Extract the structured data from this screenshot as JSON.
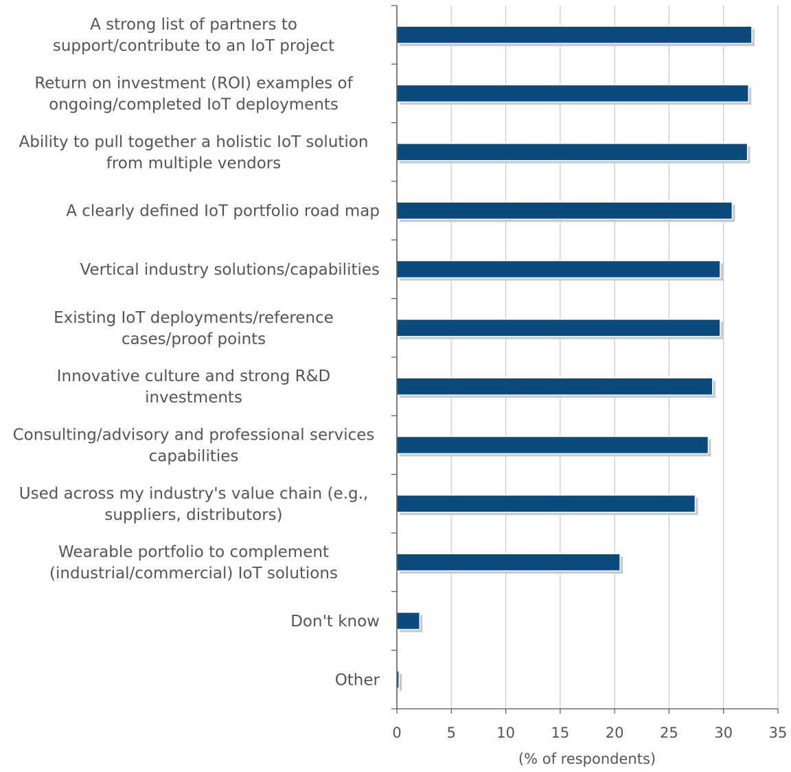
{
  "chart_data": {
    "type": "bar",
    "orientation": "horizontal",
    "categories": [
      [
        "A strong list of partners to",
        "support/contribute to an IoT project"
      ],
      [
        "Return on investment (ROI) examples of",
        "ongoing/completed IoT deployments"
      ],
      [
        "Ability to pull together a holistic IoT solution",
        "from multiple vendors"
      ],
      [
        "A clearly defined IoT portfolio road map"
      ],
      [
        "Vertical industry solutions/capabilities"
      ],
      [
        "Existing IoT deployments/reference",
        "cases/proof points"
      ],
      [
        "Innovative culture and strong R&D",
        "investments"
      ],
      [
        "Consulting/advisory and professional services",
        "capabilities"
      ],
      [
        "Used across my industry's value chain (e.g.,",
        "suppliers, distributors)"
      ],
      [
        "Wearable portfolio to complement",
        "(industrial/commercial) IoT solutions"
      ],
      [
        "Don't know"
      ],
      [
        "Other"
      ]
    ],
    "values": [
      32.6,
      32.3,
      32.2,
      30.8,
      29.7,
      29.7,
      29.0,
      28.6,
      27.4,
      20.5,
      2.1,
      0.2
    ],
    "xlabel": "(% of respondents)",
    "xlim": [
      0,
      35
    ],
    "xticks": [
      0,
      5,
      10,
      15,
      20,
      25,
      30,
      35
    ],
    "grid": "vertical",
    "colors": {
      "bar": "#0b4a7e",
      "bar_shadow": "#c9c9c9",
      "grid": "#c8c8c8",
      "axis": "#555555",
      "text": "#555555"
    }
  }
}
